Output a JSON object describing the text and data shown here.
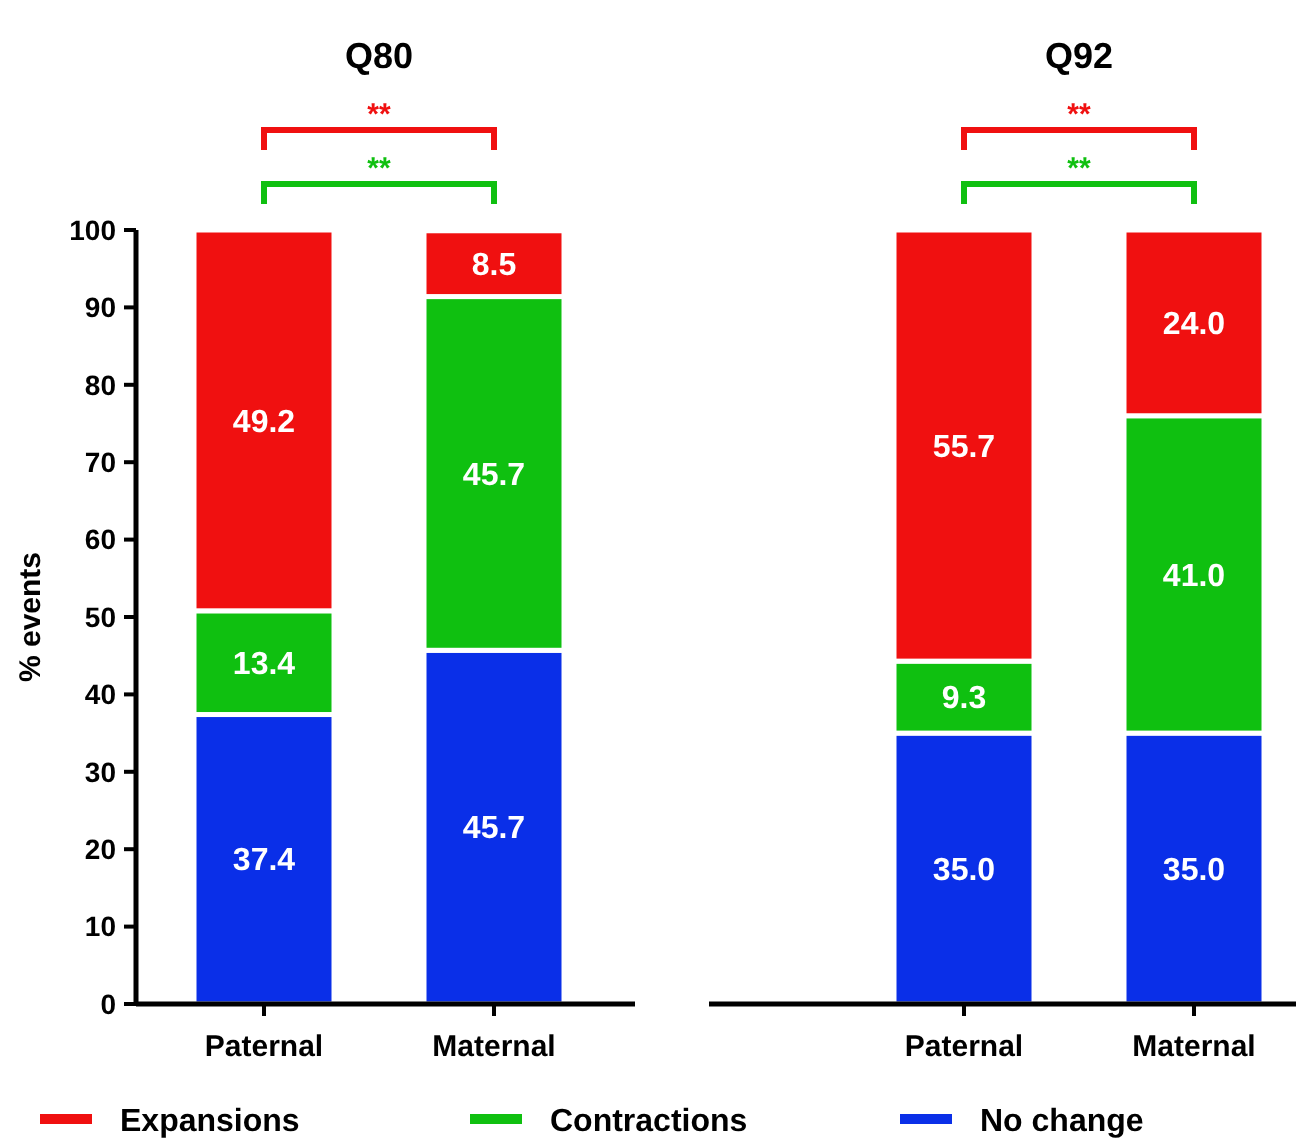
{
  "chart_data": [
    {
      "type": "bar",
      "title": "Q80",
      "ylabel": "% events",
      "stacked": true,
      "categories": [
        "Paternal",
        "Maternal"
      ],
      "ylim": [
        0,
        100
      ],
      "yticks": [
        0,
        10,
        20,
        30,
        40,
        50,
        60,
        70,
        80,
        90,
        100
      ],
      "legend": "bottom",
      "annotations": [
        "**",
        "**"
      ],
      "series": [
        {
          "name": "No change",
          "color": "#0a2fe8",
          "values": [
            37.4,
            45.7
          ],
          "value_labels": [
            "37.4",
            "45.7"
          ]
        },
        {
          "name": "Contractions",
          "color": "#0fc010",
          "values": [
            13.4,
            45.7
          ],
          "value_labels": [
            "13.4",
            "45.7"
          ]
        },
        {
          "name": "Expansions",
          "color": "#f01010",
          "values": [
            49.2,
            8.5
          ],
          "value_labels": [
            "49.2",
            "8.5"
          ]
        }
      ]
    },
    {
      "type": "bar",
      "title": "Q92",
      "stacked": true,
      "categories": [
        "Paternal",
        "Maternal"
      ],
      "ylim": [
        0,
        100
      ],
      "tick_labels": "x",
      "annotations": [
        "**",
        "**"
      ],
      "series": [
        {
          "color": "#0a2fe8",
          "values": [
            35.0,
            35.0
          ],
          "value_labels": [
            "35.0",
            "35.0"
          ]
        },
        {
          "color": "#0fc010",
          "values": [
            9.3,
            41.0
          ],
          "value_labels": [
            "9.3",
            "41.0"
          ]
        },
        {
          "color": "#f01010",
          "values": [
            55.7,
            24.0
          ],
          "value_labels": [
            "55.7",
            "24.0"
          ]
        }
      ]
    }
  ]
}
